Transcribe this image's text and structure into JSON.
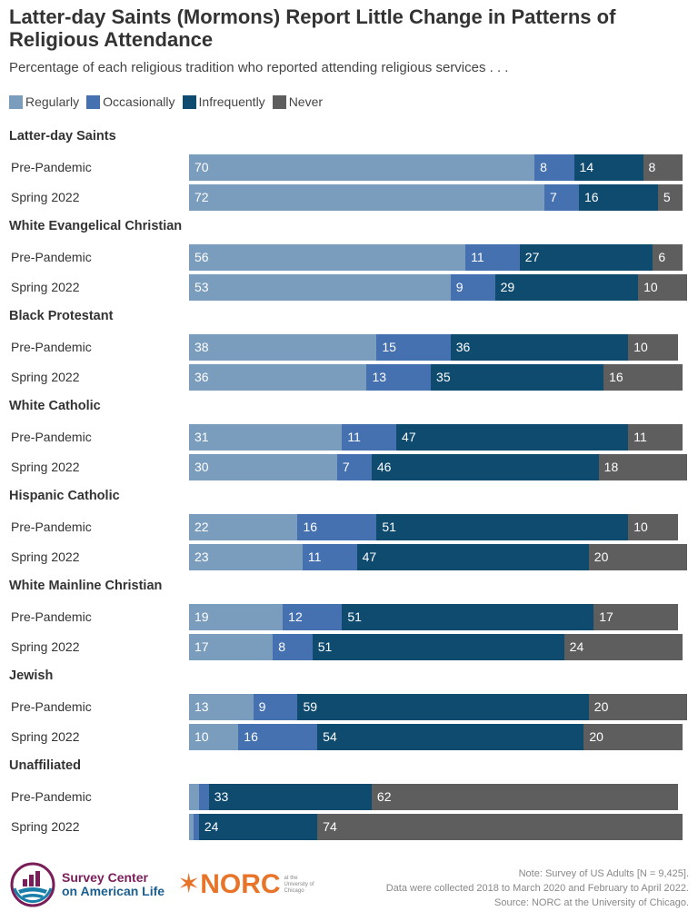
{
  "title": "Latter-day Saints (Mormons) Report Little Change in Patterns of Religious Attendance",
  "subtitle": "Percentage of each religious tradition who reported attending religious services . . .",
  "legend": [
    {
      "label": "Regularly",
      "color": "#7b9dbd"
    },
    {
      "label": "Occasionally",
      "color": "#4571b0"
    },
    {
      "label": "Infrequently",
      "color": "#0f4a6f"
    },
    {
      "label": "Never",
      "color": "#5e5e5e"
    }
  ],
  "chart_data": {
    "type": "bar",
    "orientation": "horizontal-stacked",
    "title": "Latter-day Saints (Mormons) Report Little Change in Patterns of Religious Attendance",
    "subtitle": "Percentage of each religious tradition who reported attending religious services . . .",
    "xlabel": "",
    "ylabel": "",
    "xlim": [
      0,
      100
    ],
    "grid": false,
    "legend_position": "top-left",
    "series_names": [
      "Regularly",
      "Occasionally",
      "Infrequently",
      "Never"
    ],
    "groups": [
      {
        "name": "Latter-day Saints",
        "rows": [
          {
            "label": "Pre-Pandemic",
            "values": [
              70,
              8,
              14,
              8
            ],
            "labels": [
              "70",
              "8",
              "14",
              "8"
            ]
          },
          {
            "label": "Spring 2022",
            "values": [
              72,
              7,
              16,
              5
            ],
            "labels": [
              "72",
              "7",
              "16",
              "5"
            ]
          }
        ]
      },
      {
        "name": "White Evangelical Christian",
        "rows": [
          {
            "label": "Pre-Pandemic",
            "values": [
              56,
              11,
              27,
              6
            ],
            "labels": [
              "56",
              "11",
              "27",
              "6"
            ]
          },
          {
            "label": "Spring 2022",
            "values": [
              53,
              9,
              29,
              10
            ],
            "labels": [
              "53",
              "9",
              "29",
              "10"
            ]
          }
        ]
      },
      {
        "name": "Black Protestant",
        "rows": [
          {
            "label": "Pre-Pandemic",
            "values": [
              38,
              15,
              36,
              10
            ],
            "labels": [
              "38",
              "15",
              "36",
              "10"
            ]
          },
          {
            "label": "Spring 2022",
            "values": [
              36,
              13,
              35,
              16
            ],
            "labels": [
              "36",
              "13",
              "35",
              "16"
            ]
          }
        ]
      },
      {
        "name": "White Catholic",
        "rows": [
          {
            "label": "Pre-Pandemic",
            "values": [
              31,
              11,
              47,
              11
            ],
            "labels": [
              "31",
              "11",
              "47",
              "11"
            ]
          },
          {
            "label": "Spring 2022",
            "values": [
              30,
              7,
              46,
              18
            ],
            "labels": [
              "30",
              "7",
              "46",
              "18"
            ]
          }
        ]
      },
      {
        "name": "Hispanic Catholic",
        "rows": [
          {
            "label": "Pre-Pandemic",
            "values": [
              22,
              16,
              51,
              10
            ],
            "labels": [
              "22",
              "16",
              "51",
              "10"
            ]
          },
          {
            "label": "Spring 2022",
            "values": [
              23,
              11,
              47,
              20
            ],
            "labels": [
              "23",
              "11",
              "47",
              "20"
            ]
          }
        ]
      },
      {
        "name": "White Mainline Christian",
        "rows": [
          {
            "label": "Pre-Pandemic",
            "values": [
              19,
              12,
              51,
              17
            ],
            "labels": [
              "19",
              "12",
              "51",
              "17"
            ]
          },
          {
            "label": "Spring 2022",
            "values": [
              17,
              8,
              51,
              24
            ],
            "labels": [
              "17",
              "8",
              "51",
              "24"
            ]
          }
        ]
      },
      {
        "name": "Jewish",
        "rows": [
          {
            "label": "Pre-Pandemic",
            "values": [
              13,
              9,
              59,
              20
            ],
            "labels": [
              "13",
              "9",
              "59",
              "20"
            ]
          },
          {
            "label": "Spring 2022",
            "values": [
              10,
              16,
              54,
              20
            ],
            "labels": [
              "10",
              "16",
              "54",
              "20"
            ]
          }
        ]
      },
      {
        "name": "Unaffiliated",
        "rows": [
          {
            "label": "Pre-Pandemic",
            "values": [
              2,
              2,
              33,
              62
            ],
            "labels": [
              "",
              "",
              "33",
              "62"
            ]
          },
          {
            "label": "Spring 2022",
            "values": [
              1,
              1,
              24,
              74
            ],
            "labels": [
              "",
              "",
              "24",
              "74"
            ]
          }
        ]
      }
    ]
  },
  "footer": {
    "logo1_line1": "Survey Center",
    "logo1_line2": "on American Life",
    "logo2_word": "NORC",
    "logo2_sub": [
      "at the",
      "University of",
      "Chicago"
    ],
    "note_lines": [
      "Note: Survey of US Adults [N = 9,425].",
      "Data were collected 2018 to March 2020 and February to April 2022.",
      "Source: NORC at the University of Chicago."
    ]
  }
}
